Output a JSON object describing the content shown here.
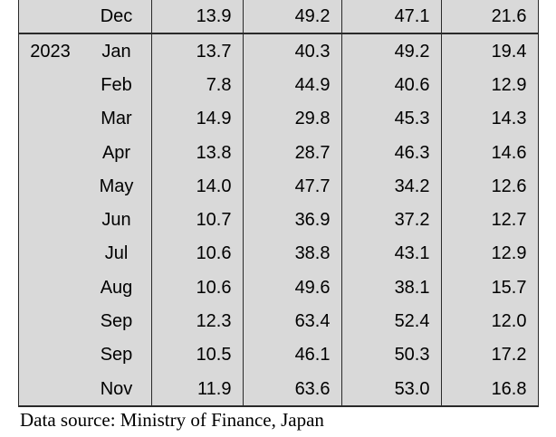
{
  "colors": {
    "page_bg": "#ffffff",
    "table_bg": "#d9d9d9",
    "border": "#2a2a2a",
    "text": "#000000"
  },
  "caption": "Data source: Ministry of Finance, Japan",
  "table": {
    "rows": [
      {
        "year": "",
        "month": "Dec",
        "values": [
          "13.9",
          "49.2",
          "47.1",
          "21.6"
        ]
      },
      {
        "year": "2023",
        "month": "Jan",
        "values": [
          "13.7",
          "40.3",
          "49.2",
          "19.4"
        ]
      },
      {
        "year": "",
        "month": "Feb",
        "values": [
          "7.8",
          "44.9",
          "40.6",
          "12.9"
        ]
      },
      {
        "year": "",
        "month": "Mar",
        "values": [
          "14.9",
          "29.8",
          "45.3",
          "14.3"
        ]
      },
      {
        "year": "",
        "month": "Apr",
        "values": [
          "13.8",
          "28.7",
          "46.3",
          "14.6"
        ]
      },
      {
        "year": "",
        "month": "May",
        "values": [
          "14.0",
          "47.7",
          "34.2",
          "12.6"
        ]
      },
      {
        "year": "",
        "month": "Jun",
        "values": [
          "10.7",
          "36.9",
          "37.2",
          "12.7"
        ]
      },
      {
        "year": "",
        "month": "Jul",
        "values": [
          "10.6",
          "38.8",
          "43.1",
          "12.9"
        ]
      },
      {
        "year": "",
        "month": "Aug",
        "values": [
          "10.6",
          "49.6",
          "38.1",
          "15.7"
        ]
      },
      {
        "year": "",
        "month": "Sep",
        "values": [
          "12.3",
          "63.4",
          "52.4",
          "12.0"
        ]
      },
      {
        "year": "",
        "month": "Sep",
        "values": [
          "10.5",
          "46.1",
          "50.3",
          "17.2"
        ]
      },
      {
        "year": "",
        "month": "Nov",
        "values": [
          "11.9",
          "63.6",
          "53.0",
          "16.8"
        ]
      }
    ]
  },
  "chart_data": {
    "type": "table",
    "columns": [
      "year",
      "month",
      "col1",
      "col2",
      "col3",
      "col4"
    ],
    "rows": [
      [
        "",
        "Dec",
        13.9,
        49.2,
        47.1,
        21.6
      ],
      [
        "2023",
        "Jan",
        13.7,
        40.3,
        49.2,
        19.4
      ],
      [
        "",
        "Feb",
        7.8,
        44.9,
        40.6,
        12.9
      ],
      [
        "",
        "Mar",
        14.9,
        29.8,
        45.3,
        14.3
      ],
      [
        "",
        "Apr",
        13.8,
        28.7,
        46.3,
        14.6
      ],
      [
        "",
        "May",
        14.0,
        47.7,
        34.2,
        12.6
      ],
      [
        "",
        "Jun",
        10.7,
        36.9,
        37.2,
        12.7
      ],
      [
        "",
        "Jul",
        10.6,
        38.8,
        43.1,
        12.9
      ],
      [
        "",
        "Aug",
        10.6,
        49.6,
        38.1,
        15.7
      ],
      [
        "",
        "Sep",
        12.3,
        63.4,
        52.4,
        12.0
      ],
      [
        "",
        "Sep",
        10.5,
        46.1,
        50.3,
        17.2
      ],
      [
        "",
        "Nov",
        11.9,
        63.6,
        53.0,
        16.8
      ]
    ],
    "source_note": "Data source: Ministry of Finance, Japan"
  }
}
